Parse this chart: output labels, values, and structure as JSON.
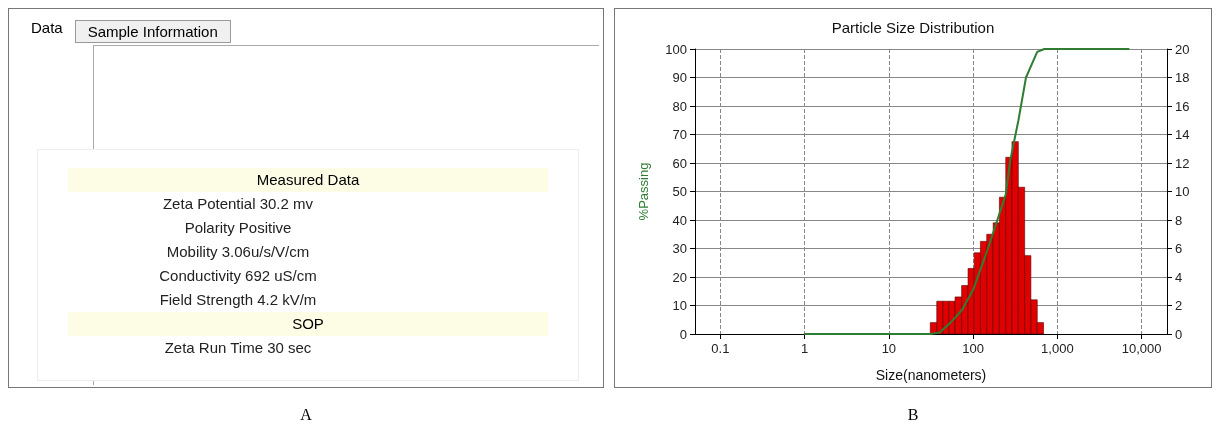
{
  "chart_data": [
    {
      "type": "other",
      "annotations": [
        "Data",
        "Sample Information",
        "Measured Data",
        "Zeta Potential 30.2 mv",
        "Polarity Positive",
        "Mobility 3.06u/s/V/cm",
        "Conductivity 692 uS/cm",
        "Field Strength 4.2 kV/m",
        "SOP",
        "Zeta Run Time 30 sec",
        "A"
      ]
    },
    {
      "type": "histogram",
      "title": "Particle Size Distribution",
      "xlabel": "Size(nanometers)",
      "ylabel": "%Passing",
      "annotations": [
        "B"
      ],
      "bins": [
        31,
        37,
        44,
        52,
        61,
        73,
        87,
        103,
        122,
        145,
        173,
        205,
        244,
        289,
        344,
        409,
        485,
        577,
        685
      ],
      "series": [
        {
          "type": "histogram",
          "axis": "y2",
          "color": "#e00000",
          "values": [
            0.8,
            2.3,
            2.3,
            2.3,
            2.6,
            3.4,
            4.6,
            5.7,
            6.5,
            7.0,
            7.8,
            9.6,
            12.4,
            13.5,
            10.3,
            5.5,
            2.4,
            0.8
          ]
        },
        {
          "type": "line",
          "color": "#2e7d32",
          "x": [
            1,
            31,
            40,
            54,
            74,
            100,
            150,
            244,
            276,
            345,
            424,
            576,
            700,
            7000
          ],
          "values": [
            0,
            0,
            0.5,
            4,
            8.5,
            15.5,
            30,
            49,
            61,
            75,
            90,
            99,
            100,
            100
          ]
        }
      ],
      "log": "x",
      "xlim": [
        0.05,
        20000
      ],
      "xticks": [
        0.1,
        1,
        10,
        100,
        {
          "value": 1000,
          "label": "1,000"
        },
        {
          "value": 10000,
          "label": "10,000"
        }
      ],
      "ylim": [
        0,
        100
      ],
      "yticks": [
        0,
        10,
        20,
        30,
        40,
        50,
        60,
        70,
        80,
        90,
        100
      ],
      "y2lim": [
        0,
        20
      ],
      "y2ticks": [
        0,
        2,
        4,
        6,
        8,
        10,
        12,
        14,
        16,
        18,
        20
      ],
      "grid": true,
      "marker": "none",
      "line_style": "solid"
    }
  ]
}
